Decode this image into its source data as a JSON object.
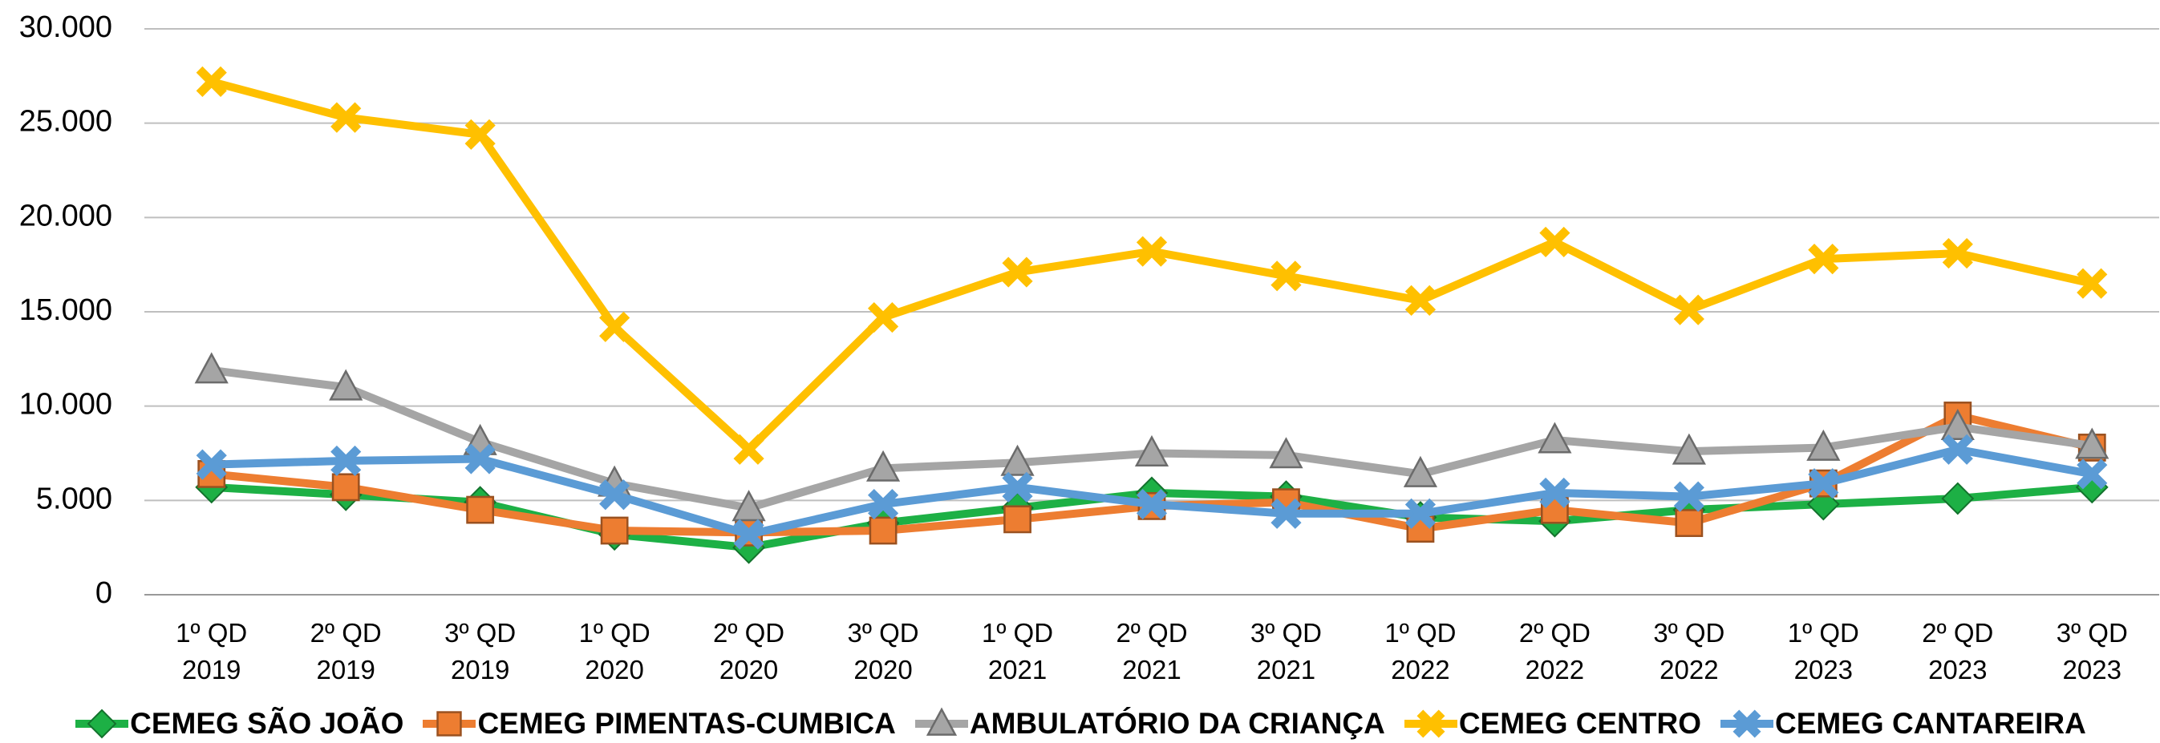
{
  "chart_data": {
    "type": "line",
    "categories": [
      "1º QD 2019",
      "2º QD 2019",
      "3º QD 2019",
      "1º QD 2020",
      "2º QD 2020",
      "3º QD 2020",
      "1º QD 2021",
      "2º QD 2021",
      "3º QD 2021",
      "1º QD 2022",
      "2º QD 2022",
      "3º QD 2022",
      "1º QD 2023",
      "2º QD 2023",
      "3º QD 2023"
    ],
    "series": [
      {
        "name": "CEMEG SÃO JOÃO",
        "color": "#1db045",
        "values": [
          5700,
          5300,
          4900,
          3200,
          2500,
          3800,
          4600,
          5400,
          5200,
          4100,
          3900,
          4500,
          4800,
          5100,
          5700
        ]
      },
      {
        "name": "CEMEG PIMENTAS-CUMBICA",
        "color": "#ed7d31",
        "values": [
          6400,
          5700,
          4500,
          3400,
          3300,
          3400,
          4000,
          4700,
          4900,
          3500,
          4500,
          3800,
          5900,
          9500,
          7800
        ]
      },
      {
        "name": "AMBULATÓRIO DA CRIANÇA",
        "color": "#a5a5a5",
        "values": [
          11900,
          11000,
          8100,
          5900,
          4600,
          6700,
          7000,
          7500,
          7400,
          6400,
          8200,
          7600,
          7800,
          8900,
          7900
        ]
      },
      {
        "name": "CEMEG CENTRO",
        "color": "#ffc000",
        "values": [
          27200,
          25300,
          24400,
          14200,
          7700,
          14700,
          17100,
          18200,
          16900,
          15600,
          18700,
          15100,
          17800,
          18100,
          16500
        ]
      },
      {
        "name": "CEMEG CANTAREIRA",
        "color": "#5b9bd5",
        "values": [
          6900,
          7100,
          7200,
          5300,
          3200,
          4800,
          5700,
          4800,
          4300,
          4300,
          5400,
          5200,
          5900,
          7700,
          6400
        ]
      }
    ],
    "ylim": [
      0,
      30000
    ],
    "yticks": [
      0,
      {
        "value": 5000,
        "label": "5.000"
      },
      {
        "value": 10000,
        "label": "10.000"
      },
      {
        "value": 15000,
        "label": "15.000"
      },
      {
        "value": 20000,
        "label": "20.000"
      },
      {
        "value": 25000,
        "label": "25.000"
      },
      {
        "value": 30000,
        "label": "30.000"
      }
    ],
    "grid": true,
    "legend": "bottom"
  }
}
